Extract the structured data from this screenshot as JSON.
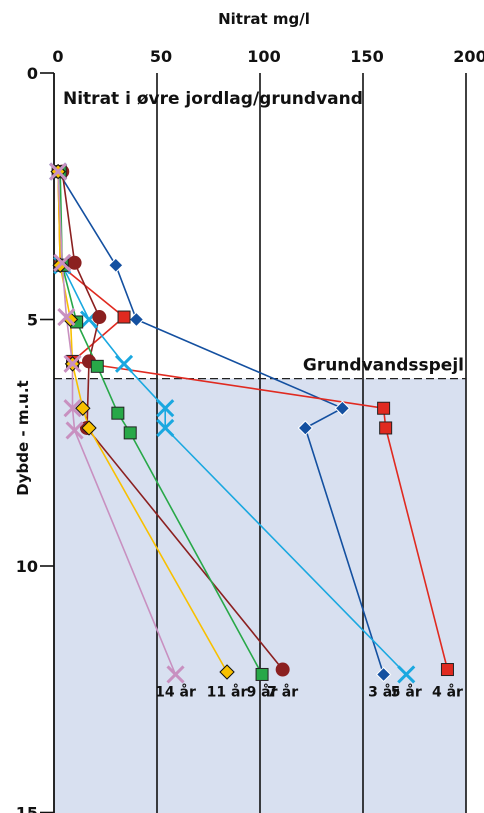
{
  "chart_data": {
    "type": "line",
    "title": "Nitrat i øvre jordlag/grundvand",
    "xlabel": "Nitrat mg/l",
    "ylabel": "Dybde - m.u.t",
    "x_ticks": [
      "0",
      "50",
      "100",
      "150",
      "200"
    ],
    "y_ticks": [
      "0",
      "5",
      "10",
      "15"
    ],
    "xlim": [
      0,
      200
    ],
    "ylim": [
      0,
      15
    ],
    "x_axis_position": "top",
    "y_inverted": true,
    "grid_x": true,
    "grid_y": false,
    "groundwater": {
      "label": "Grundvandsspejl",
      "depth": 6.2,
      "fill_color": "#d8e0f0"
    },
    "series": [
      {
        "name": "3 år",
        "color": "#1450a0",
        "marker": "diamond",
        "points": [
          [
            2,
            2
          ],
          [
            30,
            3.9
          ],
          [
            40,
            5
          ],
          [
            140,
            6.8
          ],
          [
            122,
            7.2
          ],
          [
            160,
            12.2
          ]
        ]
      },
      {
        "name": "4 år",
        "color": "#e02a20",
        "marker": "square",
        "points": [
          [
            2,
            2
          ],
          [
            3,
            3.9
          ],
          [
            34,
            4.95
          ],
          [
            9,
            5.85
          ],
          [
            160,
            6.8
          ],
          [
            161,
            7.2
          ],
          [
            191,
            12.1
          ]
        ]
      },
      {
        "name": "5 år",
        "color": "#1aa8e0",
        "marker": "x",
        "points": [
          [
            2,
            2
          ],
          [
            4,
            3.9
          ],
          [
            17,
            5
          ],
          [
            34,
            5.9
          ],
          [
            54,
            6.8
          ],
          [
            54,
            7.2
          ],
          [
            171,
            12.2
          ]
        ]
      },
      {
        "name": "7 år",
        "color": "#8b2020",
        "marker": "circle",
        "points": [
          [
            4,
            2
          ],
          [
            10,
            3.85
          ],
          [
            22,
            4.95
          ],
          [
            17,
            5.85
          ],
          [
            16,
            7.2
          ],
          [
            111,
            12.1
          ]
        ]
      },
      {
        "name": "9 år",
        "color": "#28a848",
        "marker": "square",
        "points": [
          [
            3,
            2
          ],
          [
            4,
            3.9
          ],
          [
            11,
            5.05
          ],
          [
            21,
            5.95
          ],
          [
            31,
            6.9
          ],
          [
            37,
            7.3
          ],
          [
            101,
            12.2
          ]
        ]
      },
      {
        "name": "11 år",
        "color": "#f8c000",
        "marker": "diamond",
        "points": [
          [
            2,
            2
          ],
          [
            3,
            3.9
          ],
          [
            8,
            5
          ],
          [
            9,
            5.9
          ],
          [
            14,
            6.8
          ],
          [
            17,
            7.2
          ],
          [
            84,
            12.15
          ]
        ]
      },
      {
        "name": "14 år",
        "color": "#c890c0",
        "marker": "x",
        "points": [
          [
            2,
            2
          ],
          [
            4,
            3.85
          ],
          [
            6,
            4.95
          ],
          [
            9,
            5.9
          ],
          [
            9,
            6.8
          ],
          [
            10,
            7.25
          ],
          [
            59,
            12.2
          ]
        ]
      }
    ],
    "end_labels": [
      "14 år",
      "11 år",
      "9 år",
      "7 år",
      "3 år",
      "5 år",
      "4 år"
    ]
  }
}
